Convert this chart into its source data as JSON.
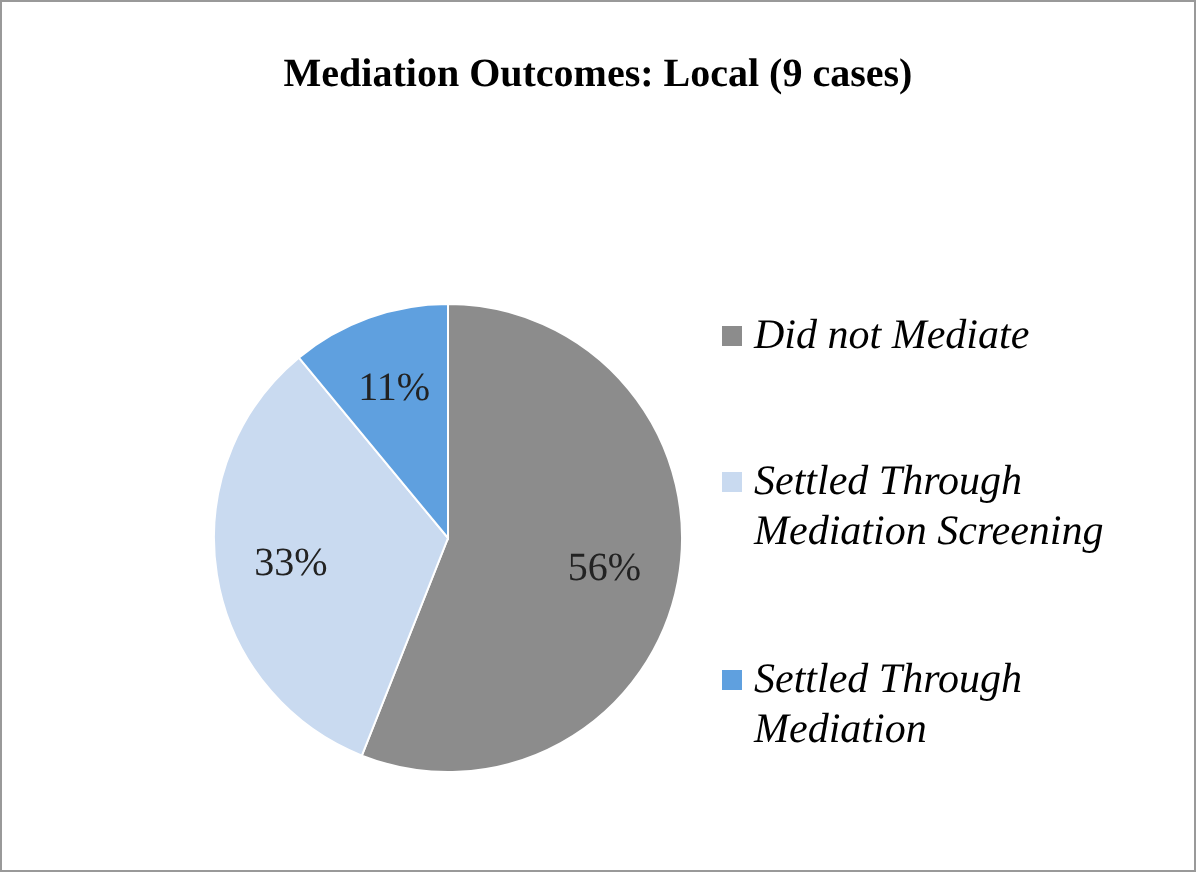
{
  "chart_data": {
    "type": "pie",
    "title": "Mediation Outcomes: Local (9 cases)",
    "categories": [
      "Did not Mediate",
      "Settled Through Mediation Screening",
      "Settled Through Mediation"
    ],
    "values": [
      56,
      33,
      11
    ],
    "colors": [
      "#8c8c8c",
      "#c9daf0",
      "#5fa0df"
    ],
    "value_labels": [
      "56%",
      "33%",
      "11%"
    ],
    "legend": "right"
  }
}
